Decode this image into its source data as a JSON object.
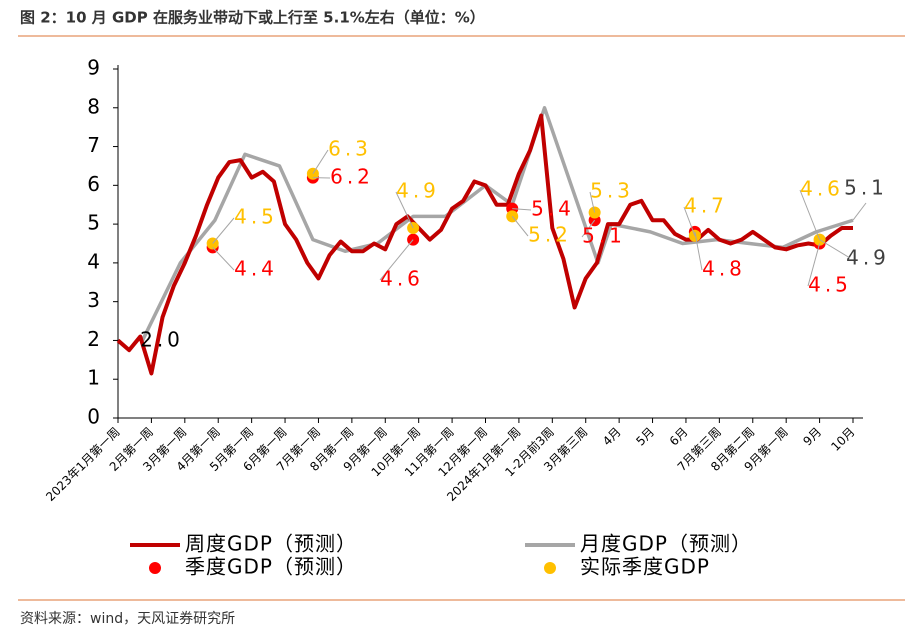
{
  "title": "图 2：10 月 GDP 在服务业带动下或上行至 5.1%左右（单位：%）",
  "source": "资料来源：wind，天风证券研究所",
  "chart_data": {
    "type": "line",
    "xlim": [
      0,
      66
    ],
    "ylim": [
      0,
      9
    ],
    "yticks": [
      0,
      1,
      2,
      3,
      4,
      5,
      6,
      7,
      8,
      9
    ],
    "xticks": [
      {
        "value": 0,
        "label": "2023年1月第一周"
      },
      {
        "value": 3,
        "label": "2月第一周"
      },
      {
        "value": 6,
        "label": "3月第一周"
      },
      {
        "value": 9,
        "label": "4月第一周"
      },
      {
        "value": 12,
        "label": "5月第一周"
      },
      {
        "value": 15,
        "label": "6月第一周"
      },
      {
        "value": 18,
        "label": "7月第一周"
      },
      {
        "value": 21,
        "label": "8月第一周"
      },
      {
        "value": 24,
        "label": "9月第一周"
      },
      {
        "value": 27,
        "label": "10月第一周"
      },
      {
        "value": 30,
        "label": "11月第一周"
      },
      {
        "value": 33,
        "label": "12月第一周"
      },
      {
        "value": 36,
        "label": "2024年1月第一周"
      },
      {
        "value": 39,
        "label": "1-2月前3周"
      },
      {
        "value": 42,
        "label": "3月第三周"
      },
      {
        "value": 45,
        "label": "4月"
      },
      {
        "value": 48,
        "label": "5月"
      },
      {
        "value": 51,
        "label": "6月"
      },
      {
        "value": 54,
        "label": "7月第三周"
      },
      {
        "value": 57,
        "label": "8月第二周"
      },
      {
        "value": 60,
        "label": "9月第一周"
      },
      {
        "value": 63,
        "label": "9月"
      },
      {
        "value": 66,
        "label": "10月"
      }
    ],
    "series": [
      {
        "name": "周度GDP（预测）",
        "style": "line",
        "color": "#c00000",
        "x": [
          0,
          1,
          2,
          3,
          4,
          5,
          6,
          7,
          8,
          9,
          10,
          11,
          12,
          13,
          14,
          15,
          16,
          17,
          18,
          19,
          20,
          21,
          22,
          23,
          24,
          25,
          26,
          27,
          28,
          29,
          30,
          31,
          32,
          33,
          34,
          35,
          36,
          37,
          38,
          39,
          40,
          41,
          42,
          43,
          44,
          45,
          46,
          47,
          48,
          49,
          50,
          51,
          52,
          53,
          54,
          55,
          56,
          57,
          58,
          59,
          60,
          61,
          62,
          63,
          64,
          65,
          66
        ],
        "values": [
          2.0,
          1.75,
          2.1,
          1.15,
          2.6,
          3.4,
          4.0,
          4.7,
          5.5,
          6.2,
          6.6,
          6.65,
          6.2,
          6.35,
          6.1,
          5.0,
          4.6,
          4.0,
          3.6,
          4.2,
          4.55,
          4.3,
          4.3,
          4.5,
          4.35,
          5.0,
          5.2,
          4.9,
          4.6,
          4.85,
          5.4,
          5.6,
          6.1,
          6.0,
          5.5,
          5.5,
          6.3,
          6.9,
          7.8,
          4.9,
          4.1,
          2.85,
          3.6,
          4.0,
          5.0,
          5.0,
          5.5,
          5.6,
          5.1,
          5.1,
          4.75,
          4.6,
          4.6,
          4.85,
          4.6,
          4.5,
          4.6,
          4.8,
          4.6,
          4.4,
          4.35,
          4.45,
          4.5,
          4.45,
          4.7,
          4.9,
          4.9
        ]
      },
      {
        "name": "月度GDP（预测）",
        "style": "line",
        "color": "#a6a6a6",
        "x": [
          2.2,
          5.6,
          8.7,
          11.4,
          14.5,
          17.5,
          20.4,
          23.3,
          26.5,
          29.4,
          33,
          35.4,
          38.3,
          43.1,
          44.3,
          47.8,
          50.7,
          53.8,
          56.7,
          59.7,
          62.7,
          66
        ],
        "values": [
          2.0,
          4.0,
          5.1,
          6.8,
          6.5,
          4.6,
          4.3,
          4.5,
          5.2,
          5.2,
          6.0,
          5.5,
          8.0,
          4.0,
          5.0,
          4.8,
          4.5,
          4.6,
          4.5,
          4.4,
          4.8,
          5.1
        ],
        "value_labels": [
          "2.0",
          null,
          null,
          null,
          null,
          null,
          null,
          null,
          null,
          null,
          null,
          null,
          null,
          null,
          null,
          null,
          null,
          null,
          null,
          null,
          null,
          "5.1"
        ]
      },
      {
        "name": "季度GDP（预测）",
        "style": "dot",
        "color": "#ff0000",
        "x": [
          8.5,
          17.5,
          26.5,
          35.4,
          42.8,
          51.8,
          63
        ],
        "values": [
          4.4,
          6.2,
          4.6,
          5.4,
          5.1,
          4.8,
          4.5
        ]
      },
      {
        "name": "实际季度GDP",
        "style": "dot",
        "color": "#ffc000",
        "x": [
          8.5,
          17.5,
          26.5,
          35.4,
          42.8,
          51.8,
          63
        ],
        "values": [
          4.5,
          6.3,
          4.9,
          5.2,
          5.3,
          4.7,
          4.6
        ]
      }
    ]
  }
}
